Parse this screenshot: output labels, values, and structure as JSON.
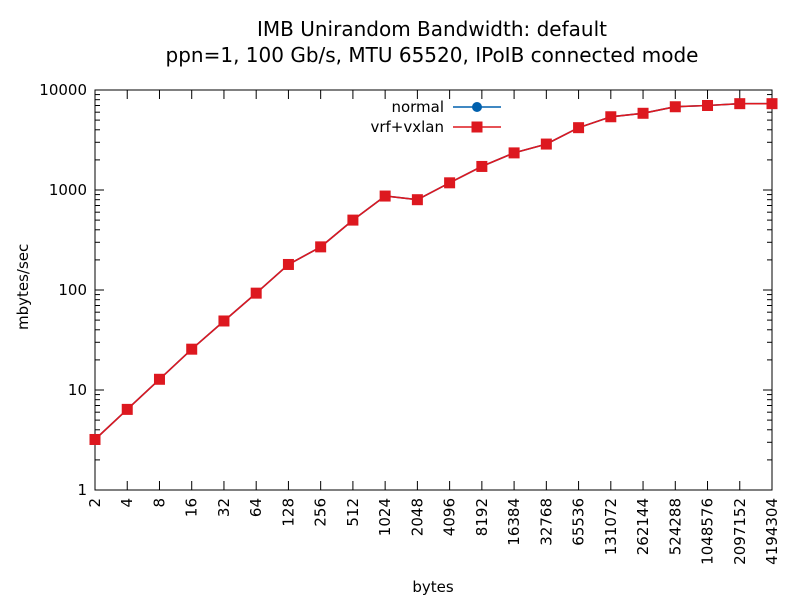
{
  "chart_data": {
    "type": "line",
    "title_line1": "IMB Unirandom Bandwidth: default",
    "title_line2": "ppn=1, 100 Gb/s, MTU 65520, IPoIB connected mode",
    "xlabel": "bytes",
    "ylabel": "mbytes/sec",
    "x_scale": "log2",
    "y_scale": "log10",
    "xlim": [
      2,
      4194304
    ],
    "ylim": [
      1,
      10000
    ],
    "x_ticks": [
      2,
      4,
      8,
      16,
      32,
      64,
      128,
      256,
      512,
      1024,
      2048,
      4096,
      8192,
      16384,
      32768,
      65536,
      131072,
      262144,
      524288,
      1048576,
      2097152,
      4194304
    ],
    "y_ticks": [
      1,
      10,
      100,
      1000,
      10000
    ],
    "y_tick_labels": [
      "1",
      "10",
      "100",
      "1000",
      "10000"
    ],
    "legend_position": "top-center",
    "grid": false,
    "x": [
      2,
      4,
      8,
      16,
      32,
      64,
      128,
      256,
      512,
      1024,
      2048,
      4096,
      8192,
      16384,
      32768,
      65536,
      131072,
      262144,
      524288,
      1048576,
      2097152,
      4194304
    ],
    "series": [
      {
        "name": "normal",
        "color": "#0060ad",
        "marker": "circle",
        "values": [
          3.2,
          6.4,
          12.8,
          25.6,
          49,
          93,
          180,
          270,
          500,
          870,
          800,
          1180,
          1720,
          2350,
          2880,
          4200,
          5400,
          5850,
          6800,
          7000,
          7300,
          7300
        ]
      },
      {
        "name": "vrf+vxlan",
        "color": "#dd181f",
        "marker": "square",
        "values": [
          3.2,
          6.4,
          12.8,
          25.6,
          49,
          93,
          180,
          270,
          500,
          870,
          800,
          1180,
          1720,
          2350,
          2880,
          4200,
          5400,
          5850,
          6800,
          7000,
          7300,
          7300
        ]
      }
    ]
  }
}
